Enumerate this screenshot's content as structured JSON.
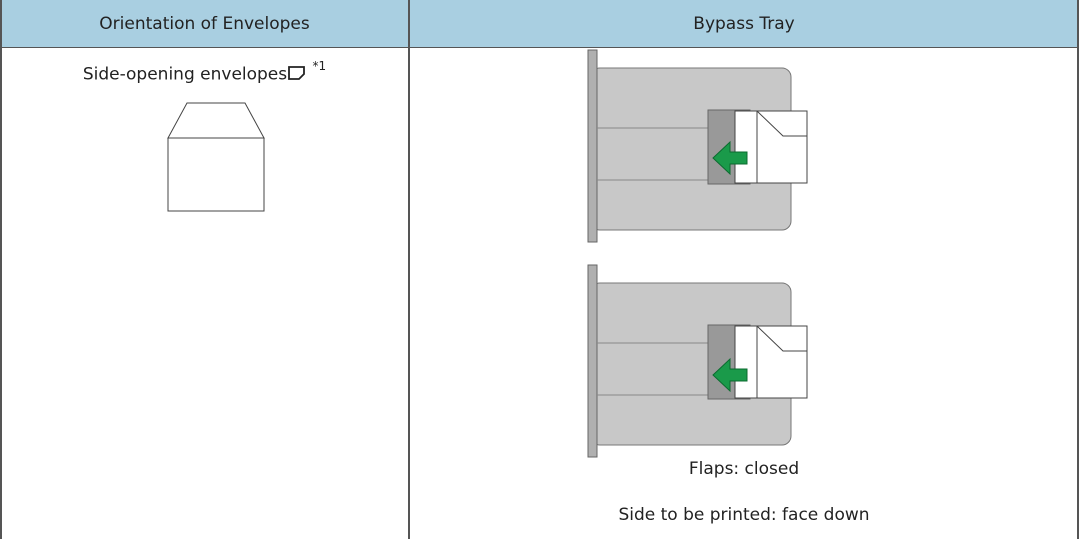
{
  "table": {
    "headers": [
      "Orientation of Envelopes",
      "Bypass Tray"
    ],
    "rows": [
      [
        {
          "text": "Side-opening envelopes",
          "note": "*1"
        },
        {
          "lines": [
            "Flaps: closed",
            "Side to be printed: face down"
          ]
        }
      ]
    ]
  }
}
